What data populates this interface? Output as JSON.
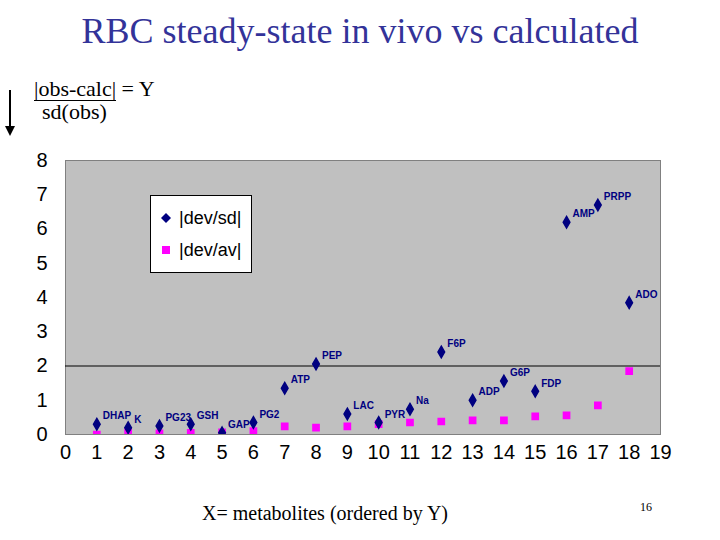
{
  "chart_data": {
    "type": "scatter",
    "title": "RBC steady-state in vivo vs calculated",
    "ylabel": {
      "numerator": "|obs-calc|",
      "equals": "= Y",
      "denominator": "sd(obs)"
    },
    "xlabel": "X= metabolites (ordered by Y)",
    "page_number": "16",
    "x": [
      1,
      2,
      3,
      4,
      5,
      6,
      7,
      8,
      9,
      10,
      11,
      12,
      13,
      14,
      15,
      16,
      17,
      18
    ],
    "point_labels": [
      "DHAP",
      "K",
      "PG23",
      "GSH",
      "GAP",
      "PG2",
      "ATP",
      "PEP",
      "LAC",
      "PYR",
      "Na",
      "F6P",
      "ADP",
      "G6P",
      "FDP",
      "AMP",
      "PRPP",
      "ADO"
    ],
    "series": [
      {
        "name": "|dev/sd|",
        "color": "#000080",
        "marker": "diamond",
        "values": [
          0.3,
          0.2,
          0.25,
          0.3,
          0.05,
          0.35,
          1.35,
          2.06,
          0.6,
          0.35,
          0.74,
          2.41,
          1.0,
          1.56,
          1.26,
          6.2,
          6.7,
          3.85
        ]
      },
      {
        "name": "|dev/av|",
        "color": "#ff00ff",
        "marker": "square",
        "values": [
          0.0,
          0.06,
          0.03,
          0.05,
          0.06,
          0.1,
          0.24,
          0.2,
          0.24,
          0.3,
          0.35,
          0.38,
          0.41,
          0.41,
          0.53,
          0.56,
          0.85,
          1.85
        ]
      }
    ],
    "hline": 2,
    "xlim": [
      0,
      19
    ],
    "xticks": [
      0,
      1,
      2,
      3,
      4,
      5,
      6,
      7,
      8,
      9,
      10,
      11,
      12,
      13,
      14,
      15,
      16,
      17,
      18,
      19
    ],
    "ylim": [
      0,
      8
    ],
    "yticks": [
      0,
      1,
      2,
      3,
      4,
      5,
      6,
      7,
      8
    ],
    "grid": false,
    "legend": "top-left"
  }
}
